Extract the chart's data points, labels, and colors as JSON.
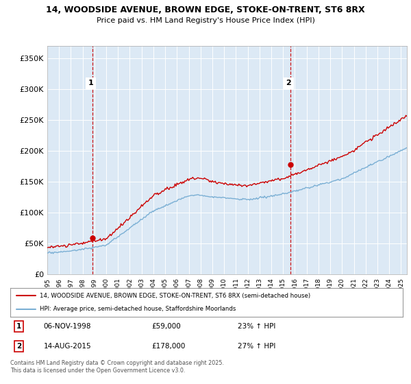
{
  "title_line1": "14, WOODSIDE AVENUE, BROWN EDGE, STOKE-ON-TRENT, ST6 8RX",
  "title_line2": "Price paid vs. HM Land Registry's House Price Index (HPI)",
  "xlim_start": 1995.0,
  "xlim_end": 2025.5,
  "ylim_min": 0,
  "ylim_max": 370000,
  "yticks": [
    0,
    50000,
    100000,
    150000,
    200000,
    250000,
    300000,
    350000
  ],
  "ytick_labels": [
    "£0",
    "£50K",
    "£100K",
    "£150K",
    "£200K",
    "£250K",
    "£300K",
    "£350K"
  ],
  "purchase1_x": 1998.85,
  "purchase1_y": 59000,
  "purchase2_x": 2015.62,
  "purchase2_y": 178000,
  "purchase1_date": "06-NOV-1998",
  "purchase1_price": "£59,000",
  "purchase1_hpi": "23% ↑ HPI",
  "purchase2_date": "14-AUG-2015",
  "purchase2_price": "£178,000",
  "purchase2_hpi": "27% ↑ HPI",
  "line_color_price": "#cc0000",
  "line_color_hpi": "#7aafd4",
  "plot_bg_color": "#dce9f5",
  "legend_label1": "14, WOODSIDE AVENUE, BROWN EDGE, STOKE-ON-TRENT, ST6 8RX (semi-detached house)",
  "legend_label2": "HPI: Average price, semi-detached house, Staffordshire Moorlands",
  "footer": "Contains HM Land Registry data © Crown copyright and database right 2025.\nThis data is licensed under the Open Government Licence v3.0.",
  "background_color": "#ffffff",
  "grid_color": "#ffffff"
}
